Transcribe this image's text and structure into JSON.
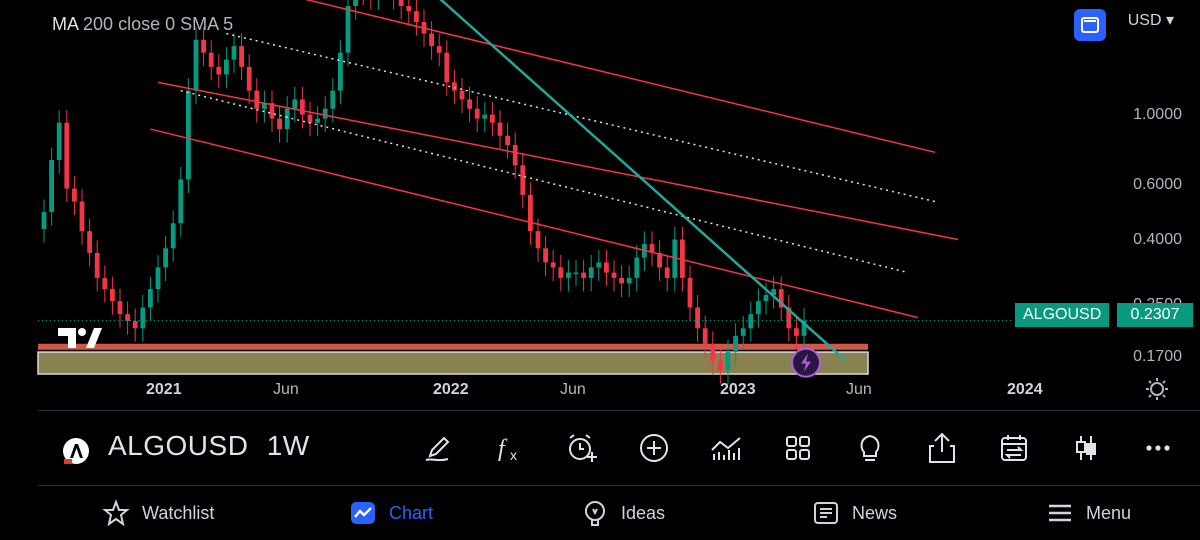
{
  "indicator": {
    "name": "MA",
    "params": "200 close 0 SMA 5"
  },
  "currency": "USD",
  "price_axis": [
    "1.0000",
    "0.6000",
    "0.4000",
    "0.2500",
    "0.1700"
  ],
  "time_axis": [
    {
      "label": "2021",
      "bold": true
    },
    {
      "label": "Jun",
      "bold": false
    },
    {
      "label": "2022",
      "bold": true
    },
    {
      "label": "Jun",
      "bold": false
    },
    {
      "label": "2023",
      "bold": true
    },
    {
      "label": "Jun",
      "bold": false
    },
    {
      "label": "2024",
      "bold": true
    }
  ],
  "last_price": {
    "symbol": "ALGOUSD",
    "value": "0.2307"
  },
  "header": {
    "symbol": "ALGOUSD",
    "interval": "1W"
  },
  "tools": [
    "drawing-pen-icon",
    "indicators-fx-icon",
    "alert-clock-icon",
    "add-plus-icon",
    "chart-type-icon",
    "layouts-grid-icon",
    "ideas-bulb-icon",
    "share-icon",
    "replay-calendar-icon",
    "candles-icon",
    "more-dots-icon"
  ],
  "nav": [
    {
      "label": "Watchlist",
      "icon": "star-icon",
      "active": false
    },
    {
      "label": "Chart",
      "icon": "chart-icon",
      "active": true
    },
    {
      "label": "Ideas",
      "icon": "ideas-icon",
      "active": false
    },
    {
      "label": "News",
      "icon": "news-icon",
      "active": false
    },
    {
      "label": "Menu",
      "icon": "menu-icon",
      "active": false
    }
  ],
  "colors": {
    "bull": "#089981",
    "bear": "#f23645",
    "accent": "#2962ff",
    "channel": "#f23645",
    "trendline": "#26a69a"
  },
  "chart_data": {
    "type": "candlestick",
    "symbol": "ALGOUSD",
    "interval": "1W",
    "y_scale": "log",
    "ylim": [
      0.16,
      1.6
    ],
    "x_ticks": [
      "2021",
      "Jun",
      "2022",
      "Jun",
      "2023",
      "Jun",
      "2024"
    ],
    "y_ticks": [
      1.0,
      0.6,
      0.4,
      0.25,
      0.17
    ],
    "last_close": 0.2307,
    "closes": [
      0.45,
      0.62,
      0.78,
      0.52,
      0.48,
      0.4,
      0.35,
      0.3,
      0.28,
      0.26,
      0.24,
      0.23,
      0.22,
      0.25,
      0.28,
      0.32,
      0.36,
      0.42,
      0.55,
      0.95,
      1.3,
      1.2,
      1.1,
      1.05,
      1.15,
      1.25,
      1.1,
      0.95,
      0.85,
      0.88,
      0.8,
      0.75,
      0.85,
      0.9,
      0.82,
      0.78,
      0.8,
      0.85,
      0.95,
      1.2,
      1.6,
      1.8,
      1.75,
      1.7,
      1.85,
      1.9,
      1.7,
      1.6,
      1.55,
      1.45,
      1.35,
      1.25,
      1.2,
      1.0,
      0.95,
      0.9,
      0.85,
      0.8,
      0.82,
      0.78,
      0.72,
      0.68,
      0.6,
      0.5,
      0.4,
      0.36,
      0.33,
      0.32,
      0.3,
      0.31,
      0.31,
      0.3,
      0.32,
      0.33,
      0.31,
      0.3,
      0.29,
      0.3,
      0.34,
      0.37,
      0.35,
      0.32,
      0.3,
      0.38,
      0.3,
      0.25,
      0.22,
      0.2,
      0.18,
      0.17,
      0.19,
      0.21,
      0.22,
      0.24,
      0.26,
      0.27,
      0.28,
      0.25,
      0.22,
      0.21,
      0.2307
    ]
  }
}
